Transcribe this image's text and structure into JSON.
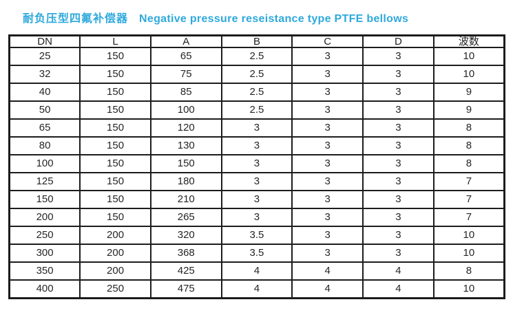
{
  "title": {
    "zh": "耐负压型四氟补偿器",
    "en": "Negative pressure reseistance type PTFE bellows",
    "color": "#2ea9dc"
  },
  "table": {
    "columns": [
      "DN",
      "L",
      "A",
      "B",
      "C",
      "D",
      "波数"
    ],
    "rows": [
      [
        "25",
        "150",
        "65",
        "2.5",
        "3",
        "3",
        "10"
      ],
      [
        "32",
        "150",
        "75",
        "2.5",
        "3",
        "3",
        "10"
      ],
      [
        "40",
        "150",
        "85",
        "2.5",
        "3",
        "3",
        "9"
      ],
      [
        "50",
        "150",
        "100",
        "2.5",
        "3",
        "3",
        "9"
      ],
      [
        "65",
        "150",
        "120",
        "3",
        "3",
        "3",
        "8"
      ],
      [
        "80",
        "150",
        "130",
        "3",
        "3",
        "3",
        "8"
      ],
      [
        "100",
        "150",
        "150",
        "3",
        "3",
        "3",
        "8"
      ],
      [
        "125",
        "150",
        "180",
        "3",
        "3",
        "3",
        "7"
      ],
      [
        "150",
        "150",
        "210",
        "3",
        "3",
        "3",
        "7"
      ],
      [
        "200",
        "150",
        "265",
        "3",
        "3",
        "3",
        "7"
      ],
      [
        "250",
        "200",
        "320",
        "3.5",
        "3",
        "3",
        "10"
      ],
      [
        "300",
        "200",
        "368",
        "3.5",
        "3",
        "3",
        "10"
      ],
      [
        "350",
        "200",
        "425",
        "4",
        "4",
        "4",
        "8"
      ],
      [
        "400",
        "250",
        "475",
        "4",
        "4",
        "4",
        "10"
      ]
    ]
  }
}
